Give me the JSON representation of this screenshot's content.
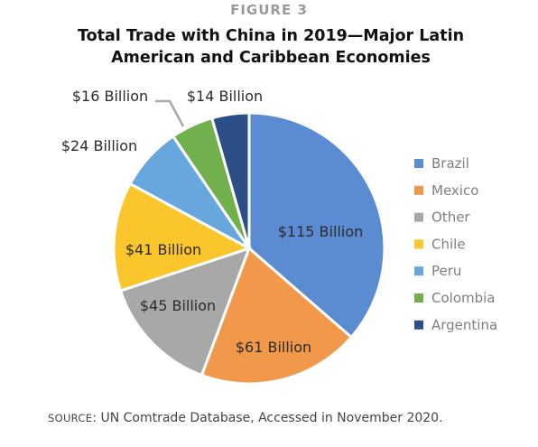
{
  "figure_label": "FIGURE 3",
  "title_line1": "Total Trade with China in 2019—Major Latin",
  "title_line2": "American and Caribbean Economies",
  "chart_data": {
    "type": "pie",
    "title": "Total Trade with China in 2019—Major Latin American and Caribbean Economies",
    "legend_position": "right",
    "slices": [
      {
        "name": "Brazil",
        "value": 115,
        "label": "$115 Billion",
        "color": "#5b8bd0"
      },
      {
        "name": "Mexico",
        "value": 61,
        "label": "$61 Billion",
        "color": "#f2984a"
      },
      {
        "name": "Other",
        "value": 45,
        "label": "$45 Billion",
        "color": "#a8a8a8"
      },
      {
        "name": "Chile",
        "value": 41,
        "label": "$41 Billion",
        "color": "#fbc62c"
      },
      {
        "name": "Peru",
        "value": 24,
        "label": "$24 Billion",
        "color": "#67a7dd"
      },
      {
        "name": "Colombia",
        "value": 16,
        "label": "$16 Billion",
        "color": "#72b04d"
      },
      {
        "name": "Argentina",
        "value": 14,
        "label": "$14 Billion",
        "color": "#2b4f86"
      }
    ]
  },
  "source": {
    "tag": "SOURCE",
    "text": ": UN Comtrade Database, Accessed in November 2020."
  }
}
